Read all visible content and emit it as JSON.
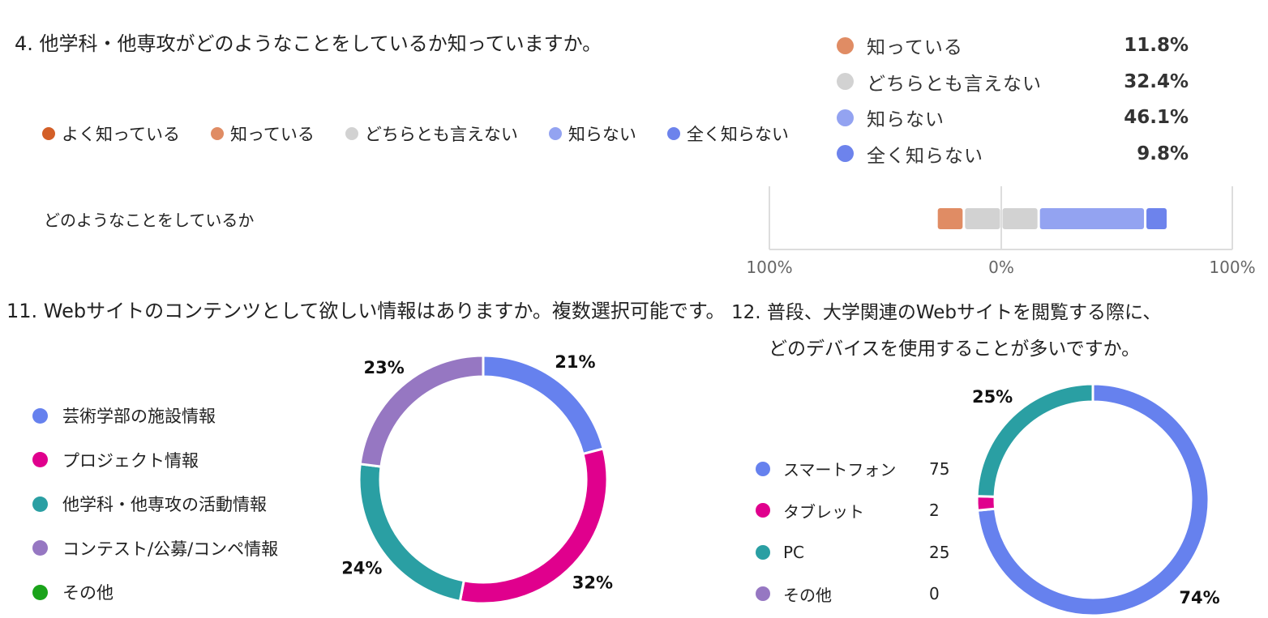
{
  "q4": {
    "title": "4. 他学科・他専攻がどのようなことをしているか知っていますか。",
    "row_label": "どのようなことをしているか"
  },
  "q11": {
    "title": "11. Webサイトのコンテンツとして欲しい情報はありますか。複数選択可能です。"
  },
  "q12": {
    "title_line1": "12. 普段、大学関連のWebサイトを閲覧する際に、",
    "title_line2": "どのデバイスを使用することが多いですか。"
  },
  "chart_data": [
    {
      "id": "q4",
      "type": "bar",
      "orientation": "horizontal-diverging",
      "categories": [
        "どのようなことをしているか"
      ],
      "series": [
        {
          "name": "よく知っている",
          "color": "#d35f28",
          "values": [
            0.0
          ]
        },
        {
          "name": "知っている",
          "color": "#e08c64",
          "values": [
            11.8
          ]
        },
        {
          "name": "どちらとも言えない",
          "color": "#d2d2d2",
          "values": [
            32.4
          ]
        },
        {
          "name": "知らない",
          "color": "#93a3f1",
          "values": [
            46.1
          ]
        },
        {
          "name": "全く知らない",
          "color": "#6d83ec",
          "values": [
            9.8
          ]
        }
      ],
      "tooltip": [
        {
          "label": "知っている",
          "value": "11.8%",
          "color": "#e08c64"
        },
        {
          "label": "どちらとも言えない",
          "value": "32.4%",
          "color": "#d2d2d2"
        },
        {
          "label": "知らない",
          "value": "46.1%",
          "color": "#93a3f1"
        },
        {
          "label": "全く知らない",
          "value": "9.8%",
          "color": "#6d83ec"
        }
      ],
      "xticks": [
        "100%",
        "0%",
        "100%"
      ],
      "xlim": [
        -100,
        100
      ],
      "legend": "top",
      "grid": true
    },
    {
      "id": "q11",
      "type": "pie",
      "donut": true,
      "legend": "left",
      "slices": [
        {
          "label": "芸術学部の施設情報",
          "percent": 21,
          "color": "#6681ee",
          "text": "21%"
        },
        {
          "label": "プロジェクト情報",
          "percent": 32,
          "color": "#e0008d",
          "text": "32%"
        },
        {
          "label": "他学科・他専攻の活動情報",
          "percent": 24,
          "color": "#2a9fa3",
          "text": "24%"
        },
        {
          "label": "コンテスト/公募/コンペ情報",
          "percent": 23,
          "color": "#9677c2",
          "text": "23%"
        },
        {
          "label": "その他",
          "percent": 0,
          "color": "#1aa31a",
          "text": ""
        }
      ]
    },
    {
      "id": "q12",
      "type": "pie",
      "donut": true,
      "legend": "left",
      "slices": [
        {
          "label": "スマートフォン",
          "count": 75,
          "color": "#6681ee",
          "text": "74%"
        },
        {
          "label": "タブレット",
          "count": 2,
          "color": "#e0008d",
          "text": ""
        },
        {
          "label": "PC",
          "count": 25,
          "color": "#2a9fa3",
          "text": "25%"
        },
        {
          "label": "その他",
          "count": 0,
          "color": "#9677c2",
          "text": ""
        }
      ]
    }
  ]
}
